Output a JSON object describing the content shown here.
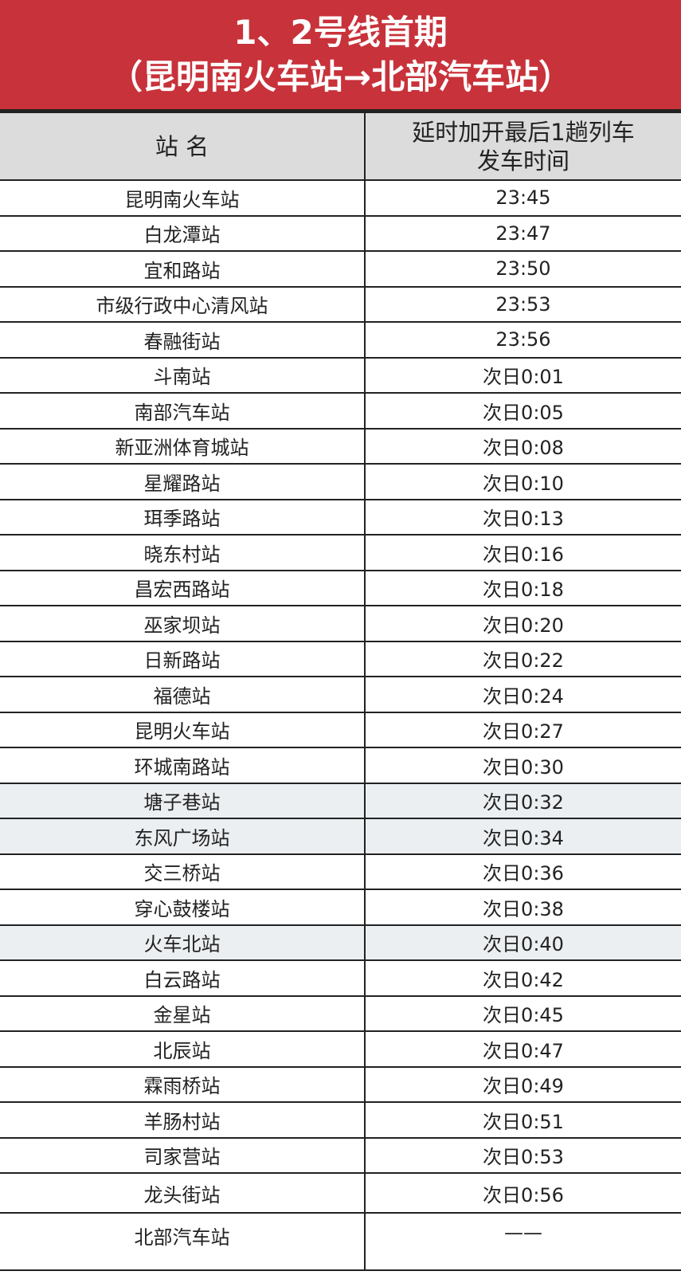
{
  "title": {
    "line1": "1、2号线首期",
    "line2": "（昆明南火车站→北部汽车站）"
  },
  "colors": {
    "title_bg": "#c8323a",
    "header_bg": "#dcdcdc",
    "highlight_row_bg": "#eceff1"
  },
  "table": {
    "headers": {
      "station": "站 名",
      "time_line1": "延时加开最后1趟列车",
      "time_line2": "发车时间"
    },
    "rows": [
      {
        "station": "昆明南火车站",
        "time": "23:45"
      },
      {
        "station": "白龙潭站",
        "time": "23:47"
      },
      {
        "station": "宜和路站",
        "time": "23:50"
      },
      {
        "station": "市级行政中心清风站",
        "time": "23:53"
      },
      {
        "station": "春融街站",
        "time": "23:56"
      },
      {
        "station": "斗南站",
        "time": "次日0:01"
      },
      {
        "station": "南部汽车站",
        "time": "次日0:05"
      },
      {
        "station": "新亚洲体育城站",
        "time": "次日0:08"
      },
      {
        "station": "星耀路站",
        "time": "次日0:10"
      },
      {
        "station": "珥季路站",
        "time": "次日0:13"
      },
      {
        "station": "晓东村站",
        "time": "次日0:16"
      },
      {
        "station": "昌宏西路站",
        "time": "次日0:18"
      },
      {
        "station": "巫家坝站",
        "time": "次日0:20"
      },
      {
        "station": "日新路站",
        "time": "次日0:22"
      },
      {
        "station": "福德站",
        "time": "次日0:24"
      },
      {
        "station": "昆明火车站",
        "time": "次日0:27"
      },
      {
        "station": "环城南路站",
        "time": "次日0:30"
      },
      {
        "station": "塘子巷站",
        "time": "次日0:32",
        "highlight": true
      },
      {
        "station": "东风广场站",
        "time": "次日0:34",
        "highlight": true
      },
      {
        "station": "交三桥站",
        "time": "次日0:36"
      },
      {
        "station": "穿心鼓楼站",
        "time": "次日0:38"
      },
      {
        "station": "火车北站",
        "time": "次日0:40",
        "highlight": true
      },
      {
        "station": "白云路站",
        "time": "次日0:42"
      },
      {
        "station": "金星站",
        "time": "次日0:45"
      },
      {
        "station": "北辰站",
        "time": "次日0:47"
      },
      {
        "station": "霖雨桥站",
        "time": "次日0:49"
      },
      {
        "station": "羊肠村站",
        "time": "次日0:51"
      },
      {
        "station": "司家营站",
        "time": "次日0:53"
      },
      {
        "station": "龙头街站",
        "time": "次日0:56"
      },
      {
        "station": "北部汽车站",
        "time": "——"
      }
    ]
  }
}
